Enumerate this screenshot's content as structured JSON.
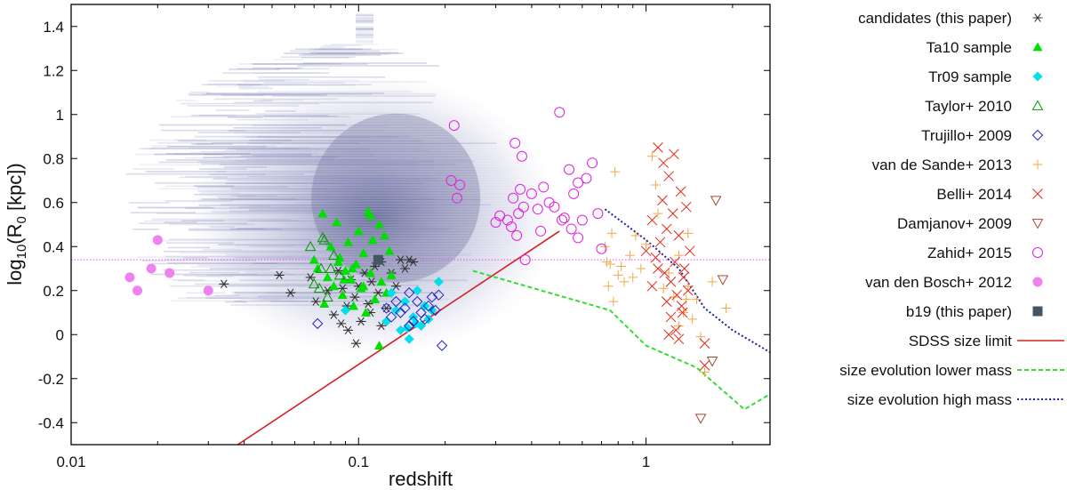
{
  "chart_data": {
    "type": "scatter",
    "xlabel": "redshift",
    "ylabel": "log10(R0 [kpc])",
    "xscale": "log",
    "xlim": [
      0.01,
      2.7
    ],
    "ylim": [
      -0.5,
      1.5
    ],
    "grid": false,
    "legend_position": "outside-right",
    "x_ticks": [
      {
        "value": 0.01,
        "label": "0.01"
      },
      {
        "value": 0.1,
        "label": "0.1"
      },
      {
        "value": 1,
        "label": "1"
      }
    ],
    "y_ticks": [
      {
        "value": -0.4,
        "label": "-0.4"
      },
      {
        "value": -0.2,
        "label": "-0.2"
      },
      {
        "value": 0,
        "label": "0"
      },
      {
        "value": 0.2,
        "label": "0.2"
      },
      {
        "value": 0.4,
        "label": "0.4"
      },
      {
        "value": 0.6,
        "label": "0.6"
      },
      {
        "value": 0.8,
        "label": "0.8"
      },
      {
        "value": 1,
        "label": "1"
      },
      {
        "value": 1.2,
        "label": "1.2"
      },
      {
        "value": 1.4,
        "label": "1.4"
      }
    ],
    "density_background": {
      "color": "#7b7fb3",
      "description_core": {
        "x_center": 0.13,
        "y_center": 0.6
      }
    },
    "reference_line": {
      "y": 0.34,
      "color": "#ff44ff",
      "style": "dotted"
    },
    "series": [
      {
        "name": "candidates (this paper)",
        "marker": "asterisk",
        "color": "#333333",
        "points": [
          [
            0.034,
            0.23
          ],
          [
            0.053,
            0.27
          ],
          [
            0.058,
            0.19
          ],
          [
            0.068,
            0.26
          ],
          [
            0.071,
            0.15
          ],
          [
            0.078,
            0.2
          ],
          [
            0.082,
            0.09
          ],
          [
            0.085,
            0.29
          ],
          [
            0.088,
            0.21
          ],
          [
            0.091,
            0.13
          ],
          [
            0.094,
            0.25
          ],
          [
            0.097,
            0.17
          ],
          [
            0.1,
            0.22
          ],
          [
            0.102,
            0.06
          ],
          [
            0.105,
            0.28
          ],
          [
            0.108,
            0.14
          ],
          [
            0.111,
            0.24
          ],
          [
            0.114,
            0.31
          ],
          [
            0.117,
            0.19
          ],
          [
            0.12,
            0.33
          ],
          [
            0.125,
            0.12
          ],
          [
            0.13,
            0.28
          ],
          [
            0.135,
            0.22
          ],
          [
            0.14,
            0.34
          ],
          [
            0.145,
            0.3
          ],
          [
            0.15,
            0.34
          ],
          [
            0.155,
            0.33
          ],
          [
            0.12,
            0.04
          ],
          [
            0.098,
            -0.04
          ],
          [
            0.11,
            0.1
          ],
          [
            0.092,
            0.02
          ],
          [
            0.087,
            0.05
          ]
        ]
      },
      {
        "name": "Ta10 sample",
        "marker": "filled-triangle",
        "color": "#00e000",
        "points": [
          [
            0.07,
            0.34
          ],
          [
            0.072,
            0.3
          ],
          [
            0.075,
            0.55
          ],
          [
            0.078,
            0.26
          ],
          [
            0.08,
            0.4
          ],
          [
            0.082,
            0.22
          ],
          [
            0.084,
            0.51
          ],
          [
            0.086,
            0.35
          ],
          [
            0.088,
            0.18
          ],
          [
            0.09,
            0.29
          ],
          [
            0.092,
            0.42
          ],
          [
            0.094,
            0.25
          ],
          [
            0.096,
            0.13
          ],
          [
            0.098,
            0.32
          ],
          [
            0.1,
            0.47
          ],
          [
            0.102,
            0.21
          ],
          [
            0.104,
            0.37
          ],
          [
            0.106,
            0.1
          ],
          [
            0.108,
            0.56
          ],
          [
            0.11,
            0.28
          ],
          [
            0.112,
            0.43
          ],
          [
            0.114,
            0.16
          ],
          [
            0.116,
            0.34
          ],
          [
            0.118,
            0.5
          ],
          [
            0.12,
            0.24
          ],
          [
            0.123,
            0.45
          ],
          [
            0.125,
            0.19
          ],
          [
            0.128,
            0.38
          ],
          [
            0.13,
            0.27
          ],
          [
            0.118,
            -0.05
          ],
          [
            0.11,
            0.54
          ],
          [
            0.076,
            0.14
          ],
          [
            0.095,
            0.3
          ],
          [
            0.085,
            0.33
          ],
          [
            0.089,
            0.25
          ],
          [
            0.104,
            0.22
          ]
        ]
      },
      {
        "name": "Tr09 sample",
        "marker": "filled-diamond",
        "color": "#00e0e8",
        "points": [
          [
            0.09,
            0.11
          ],
          [
            0.125,
            0.06
          ],
          [
            0.13,
            0.19
          ],
          [
            0.135,
            0.11
          ],
          [
            0.14,
            0.02
          ],
          [
            0.145,
            0.15
          ],
          [
            0.15,
            -0.02
          ],
          [
            0.155,
            0.08
          ],
          [
            0.16,
            0.2
          ],
          [
            0.165,
            0.04
          ],
          [
            0.17,
            0.13
          ],
          [
            0.175,
            0.07
          ],
          [
            0.18,
            0.11
          ],
          [
            0.19,
            0.24
          ],
          [
            0.148,
            0.03
          ],
          [
            0.158,
            0.05
          ]
        ]
      },
      {
        "name": "Taylor+ 2010",
        "marker": "open-triangle",
        "color": "#009900",
        "points": [
          [
            0.068,
            0.4
          ],
          [
            0.07,
            0.23
          ],
          [
            0.074,
            0.3
          ],
          [
            0.076,
            0.43
          ],
          [
            0.078,
            0.17
          ],
          [
            0.082,
            0.36
          ],
          [
            0.086,
            0.27
          ],
          [
            0.075,
            0.44
          ],
          [
            0.08,
            0.3
          ],
          [
            0.073,
            0.21
          ]
        ]
      },
      {
        "name": "Trujillo+ 2009",
        "marker": "open-diamond",
        "color": "#2222cc",
        "points": [
          [
            0.072,
            0.05
          ],
          [
            0.135,
            0.15
          ],
          [
            0.14,
            0.1
          ],
          [
            0.145,
            0.12
          ],
          [
            0.15,
            0.19
          ],
          [
            0.155,
            0.06
          ],
          [
            0.16,
            0.15
          ],
          [
            0.165,
            0.1
          ],
          [
            0.17,
            0.07
          ],
          [
            0.175,
            0.13
          ],
          [
            0.18,
            0.17
          ],
          [
            0.185,
            0.11
          ],
          [
            0.19,
            0.18
          ],
          [
            0.195,
            -0.05
          ],
          [
            0.125,
            0.12
          ],
          [
            0.13,
            0.08
          ],
          [
            0.15,
            0.04
          ]
        ]
      },
      {
        "name": "van de Sande+ 2013",
        "marker": "plus",
        "color": "#f0a848",
        "points": [
          [
            0.72,
            0.4
          ],
          [
            0.75,
            0.32
          ],
          [
            0.78,
            0.74
          ],
          [
            0.8,
            0.27
          ],
          [
            0.76,
            0.46
          ],
          [
            0.74,
            0.22
          ],
          [
            0.73,
            0.33
          ],
          [
            0.77,
            0.15
          ],
          [
            0.82,
            0.31
          ],
          [
            0.84,
            0.24
          ],
          [
            0.88,
            0.36
          ],
          [
            0.92,
            0.45
          ],
          [
            0.96,
            0.3
          ],
          [
            1.0,
            0.41
          ],
          [
            1.05,
            0.81
          ],
          [
            1.1,
            0.55
          ],
          [
            1.15,
            0.21
          ],
          [
            1.2,
            0.28
          ],
          [
            1.25,
            0.17
          ],
          [
            1.3,
            0.36
          ],
          [
            1.35,
            0.1
          ],
          [
            1.4,
            0.22
          ],
          [
            1.45,
            0.07
          ],
          [
            1.5,
            0.16
          ],
          [
            1.55,
            -0.01
          ],
          [
            1.6,
            -0.17
          ],
          [
            1.7,
            0.24
          ],
          [
            1.9,
            0.12
          ],
          [
            1.4,
            0.46
          ],
          [
            1.3,
            0.04
          ],
          [
            0.9,
            0.26
          ],
          [
            1.08,
            0.68
          ],
          [
            1.38,
            0.16
          ]
        ]
      },
      {
        "name": "Belli+ 2014",
        "marker": "x",
        "color": "#e02818",
        "points": [
          [
            1.0,
            0.38
          ],
          [
            1.05,
            0.52
          ],
          [
            1.08,
            0.35
          ],
          [
            1.1,
            0.85
          ],
          [
            1.12,
            0.42
          ],
          [
            1.14,
            0.61
          ],
          [
            1.16,
            0.28
          ],
          [
            1.18,
            0.48
          ],
          [
            1.2,
            0.72
          ],
          [
            1.22,
            0.24
          ],
          [
            1.24,
            0.55
          ],
          [
            1.26,
            0.33
          ],
          [
            1.28,
            0.18
          ],
          [
            1.3,
            0.45
          ],
          [
            1.32,
            0.65
          ],
          [
            1.34,
            0.1
          ],
          [
            1.36,
            0.3
          ],
          [
            1.38,
            0.58
          ],
          [
            1.4,
            0.2
          ],
          [
            1.42,
            0.38
          ],
          [
            1.25,
            0.82
          ],
          [
            1.15,
            0.78
          ],
          [
            1.27,
            0.02
          ],
          [
            1.3,
            -0.02
          ],
          [
            1.33,
            0.13
          ],
          [
            1.22,
            0.08
          ],
          [
            1.2,
            0.0
          ],
          [
            1.18,
            0.15
          ],
          [
            1.6,
            -0.04
          ],
          [
            1.6,
            -0.14
          ],
          [
            1.1,
            0.3
          ],
          [
            1.05,
            0.22
          ],
          [
            1.35,
            0.26
          ]
        ]
      },
      {
        "name": "Damjanov+ 2009",
        "marker": "open-triangle-down",
        "color": "#a84830",
        "points": [
          [
            1.75,
            0.61
          ],
          [
            1.85,
            0.25
          ],
          [
            1.7,
            -0.12
          ],
          [
            1.55,
            -0.38
          ]
        ]
      },
      {
        "name": "Zahid+ 2015",
        "marker": "open-circle",
        "color": "#e020e0",
        "points": [
          [
            0.215,
            0.95
          ],
          [
            0.21,
            0.7
          ],
          [
            0.22,
            0.62
          ],
          [
            0.225,
            0.68
          ],
          [
            0.3,
            0.51
          ],
          [
            0.31,
            0.54
          ],
          [
            0.33,
            0.52
          ],
          [
            0.34,
            0.49
          ],
          [
            0.345,
            0.62
          ],
          [
            0.35,
            0.87
          ],
          [
            0.355,
            0.45
          ],
          [
            0.36,
            0.55
          ],
          [
            0.365,
            0.66
          ],
          [
            0.37,
            0.81
          ],
          [
            0.375,
            0.58
          ],
          [
            0.38,
            0.34
          ],
          [
            0.4,
            0.64
          ],
          [
            0.42,
            0.57
          ],
          [
            0.44,
            0.67
          ],
          [
            0.46,
            0.6
          ],
          [
            0.48,
            0.58
          ],
          [
            0.5,
            1.01
          ],
          [
            0.52,
            0.53
          ],
          [
            0.54,
            0.75
          ],
          [
            0.56,
            0.64
          ],
          [
            0.58,
            0.44
          ],
          [
            0.6,
            0.52
          ],
          [
            0.62,
            0.71
          ],
          [
            0.65,
            0.78
          ],
          [
            0.68,
            0.55
          ],
          [
            0.7,
            0.39
          ],
          [
            0.51,
            0.52
          ],
          [
            0.55,
            0.48
          ],
          [
            0.58,
            0.69
          ],
          [
            0.43,
            0.47
          ]
        ]
      },
      {
        "name": "van den Bosch+ 2012",
        "marker": "filled-circle",
        "color": "#ee82ee",
        "points": [
          [
            0.016,
            0.26
          ],
          [
            0.017,
            0.2
          ],
          [
            0.019,
            0.3
          ],
          [
            0.02,
            0.43
          ],
          [
            0.022,
            0.28
          ],
          [
            0.03,
            0.2
          ]
        ]
      },
      {
        "name": "b19 (this paper)",
        "marker": "filled-square",
        "color": "#445566",
        "points": [
          [
            0.117,
            0.34
          ]
        ]
      },
      {
        "name": "SDSS size limit",
        "marker": "line",
        "color": "#d42020",
        "line_style": "solid",
        "points": [
          [
            0.038,
            -0.5
          ],
          [
            0.5,
            0.47
          ]
        ]
      },
      {
        "name": "size evolution lower mass",
        "marker": "line",
        "color": "#33dd33",
        "line_style": "dashed",
        "points": [
          [
            0.25,
            0.29
          ],
          [
            0.75,
            0.11
          ],
          [
            1.0,
            -0.05
          ],
          [
            1.5,
            -0.15
          ],
          [
            2.2,
            -0.34
          ],
          [
            2.7,
            -0.27
          ]
        ]
      },
      {
        "name": "size evolution high mass",
        "marker": "line",
        "color": "#1a2299",
        "line_style": "dotted",
        "points": [
          [
            0.72,
            0.57
          ],
          [
            1.0,
            0.43
          ],
          [
            1.3,
            0.3
          ],
          [
            1.6,
            0.12
          ],
          [
            2.0,
            0.02
          ],
          [
            2.7,
            -0.08
          ]
        ]
      }
    ]
  }
}
